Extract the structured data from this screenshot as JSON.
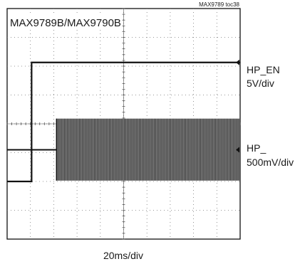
{
  "chart_data": {
    "type": "line",
    "figure_id": "MAX9789 toc38",
    "title": "MAX9789B/MAX9790B",
    "xlabel": "20ms/div",
    "divisions": {
      "x": 10,
      "y": 8
    },
    "grid": true,
    "series": [
      {
        "name": "HP_EN",
        "scale": "5V/div",
        "kind": "step",
        "x_div": [
          0,
          1.05,
          1.05,
          10
        ],
        "y_div": [
          2.0,
          2.0,
          6.13,
          6.13
        ]
      },
      {
        "name": "HP_",
        "scale": "500mV/div",
        "kind": "burst",
        "baseline_div": 3.1,
        "burst_start_div": 2.12,
        "burst_end_div": 10,
        "burst_top_div": 4.18,
        "burst_bottom_div": 2.03
      }
    ],
    "markers": [
      {
        "series": "HP_EN",
        "y_div": 6.13
      },
      {
        "series": "HP_",
        "y_div": 3.1
      }
    ]
  }
}
